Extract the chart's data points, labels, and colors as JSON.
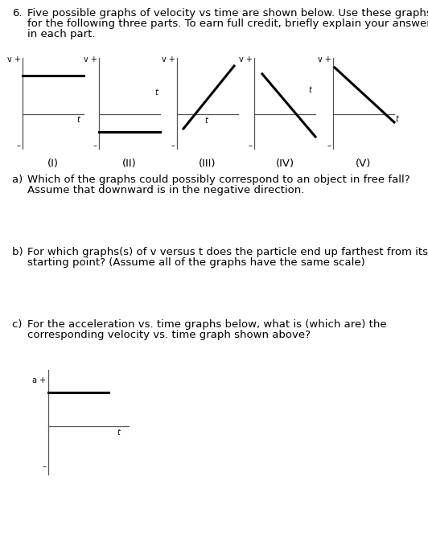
{
  "background_color": "#ffffff",
  "text_color": "#000000",
  "axis_color": "#555555",
  "bold_line_color": "#000000",
  "graph_labels": [
    "(I)",
    "(II)",
    "(III)",
    "(IV)",
    "(V)"
  ],
  "title_num": "6.",
  "title_line1": "Five possible graphs of velocity vs time are shown below. Use these graphs",
  "title_line2": "for the following three parts. To earn full credit, briefly explain your answer",
  "title_line3": "in each part.",
  "qa_prefix": "a) ",
  "qa_line1": "Which of the graphs could possibly correspond to an object in free fall?",
  "qa_line2": "Assume that downward is in the negative direction.",
  "qb_prefix": "b) ",
  "qb_line1": "For which graphs(s) of v versus t does the particle end up farthest from its",
  "qb_line2": "starting point? (Assume all of the graphs have the same scale)",
  "qc_prefix": "c) ",
  "qc_line1": "For the acceleration vs. time graphs below, what is (which are) the",
  "qc_line2": "corresponding velocity vs. time graph shown above?",
  "fontsize_text": 9.5,
  "fontsize_axis_label": 7.0,
  "fontsize_graph_label": 9.5
}
